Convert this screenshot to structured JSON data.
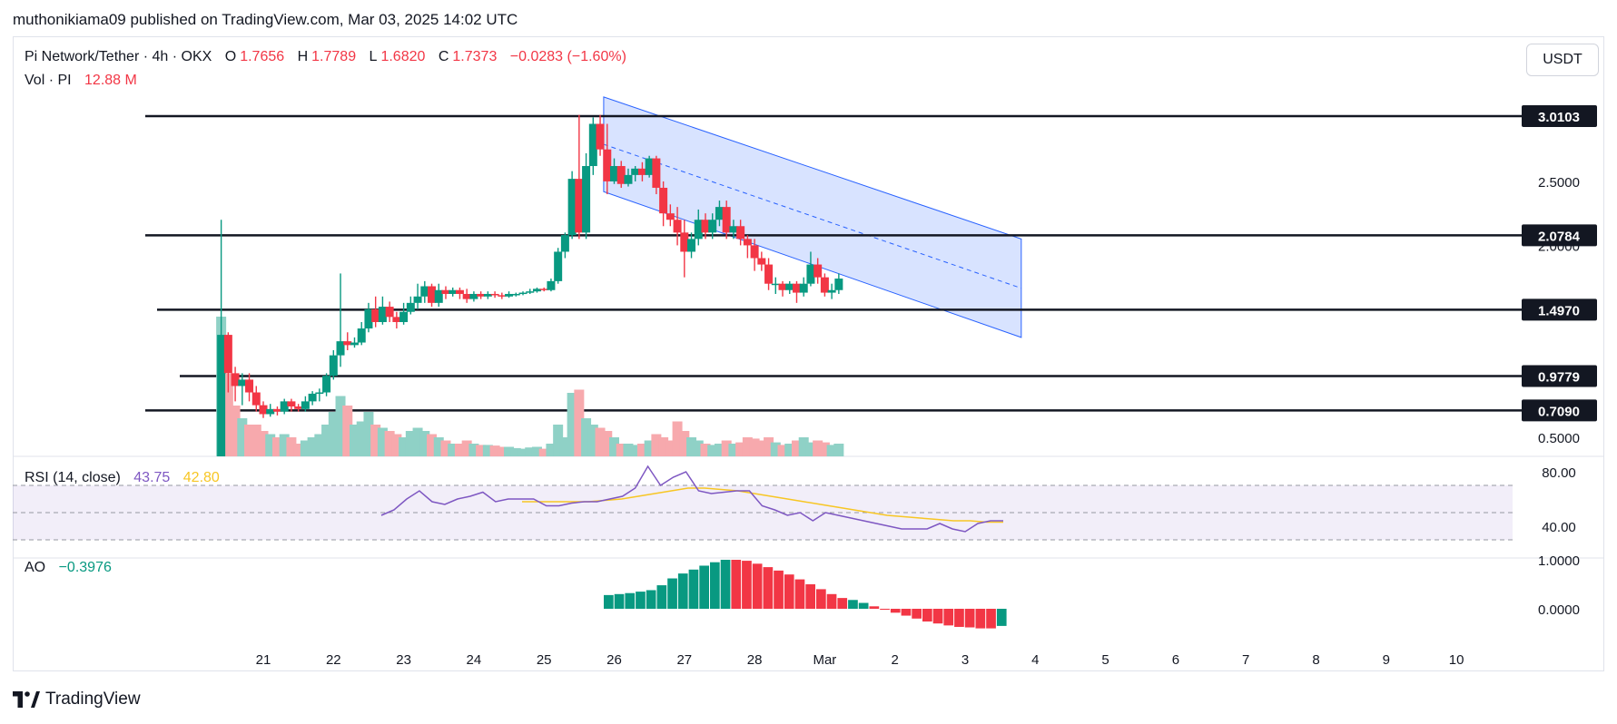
{
  "header": {
    "published": "muthonikiama09 published on TradingView.com, Mar 03, 2025 14:02 UTC"
  },
  "legend": {
    "symbol": "Pi Network/Tether · 4h · OKX",
    "o_label": "O",
    "o_value": "1.7656",
    "h_label": "H",
    "h_value": "1.7789",
    "l_label": "L",
    "l_value": "1.6820",
    "c_label": "C",
    "c_value": "1.7373",
    "change": "−0.0283 (−1.60%)",
    "vol_label": "Vol · PI",
    "vol_value": "12.88 M"
  },
  "currency_button": "USDT",
  "rsi_legend": {
    "label": "RSI (14, close)",
    "rsi": "43.75",
    "ma": "42.80"
  },
  "ao_legend": {
    "label": "AO",
    "value": "−0.3976"
  },
  "brand": {
    "name": "TradingView",
    "icon": "tradingview-logo-icon"
  },
  "colors": {
    "up": "#089981",
    "down": "#f23645",
    "up_vol": "#8fd1c6",
    "down_vol": "#f7a9ad",
    "channel": "#2962ff",
    "rsi": "#7e57c2",
    "rsi_ma": "#f7c624",
    "text": "#131722",
    "axis": "#d1d4dc"
  },
  "chart_data": {
    "type": "candlestick",
    "title": "Pi Network/Tether · 4h · OKX",
    "x_ticks": [
      "21",
      "22",
      "23",
      "24",
      "25",
      "26",
      "27",
      "28",
      "Mar",
      "2",
      "3",
      "4",
      "5",
      "6",
      "7",
      "8",
      "9",
      "10"
    ],
    "price_axis_labels": [
      "2.5000",
      "2.0000",
      "0.5000"
    ],
    "price_axis_ticks": [
      2.5,
      2.0,
      0.5
    ],
    "levels": [
      {
        "label": "3.0103",
        "value": 3.0103
      },
      {
        "label": "2.0784",
        "value": 2.0784
      },
      {
        "label": "1.4970",
        "value": 1.497
      },
      {
        "label": "0.9779",
        "value": 0.9779
      },
      {
        "label": "0.7090",
        "value": 0.709
      }
    ],
    "channel": {
      "upper_start": 3.16,
      "upper_end": 2.05,
      "lower_start": 2.42,
      "lower_end": 1.28,
      "start_day": 25.85,
      "end_day": 31.8
    },
    "candles": [
      [
        20.4,
        0.35,
        1.3,
        0.35,
        2.2,
        2.2
      ],
      [
        20.5,
        1.3,
        1.0,
        0.85,
        1.32,
        1.3
      ],
      [
        20.6,
        1.0,
        0.9,
        0.78,
        1.05,
        0.8
      ],
      [
        20.7,
        0.9,
        0.95,
        0.75,
        1.0,
        0.6
      ],
      [
        20.8,
        0.95,
        0.85,
        0.78,
        1.0,
        0.5
      ],
      [
        20.9,
        0.85,
        0.75,
        0.7,
        0.9,
        0.5
      ],
      [
        21.0,
        0.75,
        0.68,
        0.65,
        0.78,
        0.4
      ],
      [
        21.1,
        0.68,
        0.72,
        0.66,
        0.76,
        0.35
      ],
      [
        21.2,
        0.72,
        0.7,
        0.67,
        0.74,
        0.3
      ],
      [
        21.3,
        0.7,
        0.78,
        0.68,
        0.8,
        0.35
      ],
      [
        21.4,
        0.78,
        0.74,
        0.7,
        0.8,
        0.3
      ],
      [
        21.5,
        0.74,
        0.72,
        0.7,
        0.76,
        0.2
      ],
      [
        21.6,
        0.72,
        0.78,
        0.7,
        0.82,
        0.25
      ],
      [
        21.7,
        0.78,
        0.84,
        0.75,
        0.86,
        0.3
      ],
      [
        21.8,
        0.84,
        0.85,
        0.78,
        0.88,
        0.35
      ],
      [
        21.9,
        0.85,
        0.98,
        0.82,
        1.0,
        0.5
      ],
      [
        22.0,
        0.98,
        1.14,
        0.95,
        1.18,
        0.7
      ],
      [
        22.1,
        1.14,
        1.25,
        1.05,
        1.78,
        0.95
      ],
      [
        22.2,
        1.25,
        1.22,
        1.18,
        1.32,
        0.8
      ],
      [
        22.3,
        1.22,
        1.24,
        1.2,
        1.28,
        0.5
      ],
      [
        22.4,
        1.24,
        1.35,
        1.22,
        1.4,
        0.55
      ],
      [
        22.5,
        1.35,
        1.5,
        1.32,
        1.55,
        0.7
      ],
      [
        22.6,
        1.5,
        1.4,
        1.36,
        1.6,
        0.5
      ],
      [
        22.7,
        1.4,
        1.52,
        1.38,
        1.6,
        0.45
      ],
      [
        22.8,
        1.52,
        1.44,
        1.4,
        1.56,
        0.4
      ],
      [
        22.9,
        1.44,
        1.4,
        1.35,
        1.48,
        0.35
      ],
      [
        23.0,
        1.4,
        1.48,
        1.38,
        1.55,
        0.3
      ],
      [
        23.1,
        1.48,
        1.55,
        1.46,
        1.6,
        0.4
      ],
      [
        23.2,
        1.55,
        1.6,
        1.5,
        1.7,
        0.45
      ],
      [
        23.3,
        1.6,
        1.68,
        1.55,
        1.72,
        0.4
      ],
      [
        23.4,
        1.68,
        1.55,
        1.52,
        1.7,
        0.35
      ],
      [
        23.5,
        1.55,
        1.65,
        1.52,
        1.7,
        0.3
      ],
      [
        23.6,
        1.65,
        1.62,
        1.58,
        1.68,
        0.25
      ],
      [
        23.7,
        1.62,
        1.65,
        1.6,
        1.67,
        0.2
      ],
      [
        23.8,
        1.65,
        1.62,
        1.58,
        1.67,
        0.2
      ],
      [
        23.9,
        1.62,
        1.58,
        1.55,
        1.66,
        0.25
      ],
      [
        24.0,
        1.58,
        1.62,
        1.56,
        1.64,
        0.2
      ],
      [
        24.1,
        1.62,
        1.6,
        1.58,
        1.64,
        0.18
      ],
      [
        24.2,
        1.6,
        1.62,
        1.58,
        1.64,
        0.18
      ],
      [
        24.3,
        1.62,
        1.61,
        1.59,
        1.64,
        0.17
      ],
      [
        24.4,
        1.61,
        1.6,
        1.58,
        1.63,
        0.15
      ],
      [
        24.5,
        1.6,
        1.62,
        1.59,
        1.64,
        0.15
      ],
      [
        24.6,
        1.62,
        1.62,
        1.6,
        1.63,
        0.13
      ],
      [
        24.7,
        1.62,
        1.63,
        1.61,
        1.64,
        0.12
      ],
      [
        24.8,
        1.63,
        1.64,
        1.62,
        1.66,
        0.14
      ],
      [
        24.9,
        1.64,
        1.66,
        1.63,
        1.67,
        0.15
      ],
      [
        25.0,
        1.66,
        1.65,
        1.64,
        1.67,
        0.12
      ],
      [
        25.1,
        1.65,
        1.72,
        1.64,
        1.74,
        0.2
      ],
      [
        25.2,
        1.72,
        1.95,
        1.7,
        1.98,
        0.5
      ],
      [
        25.3,
        1.95,
        2.08,
        1.9,
        2.1,
        0.3
      ],
      [
        25.4,
        2.08,
        2.52,
        2.05,
        2.58,
        1.0
      ],
      [
        25.5,
        2.52,
        2.1,
        2.05,
        3.02,
        1.05
      ],
      [
        25.6,
        2.1,
        2.62,
        2.05,
        2.72,
        0.6
      ],
      [
        25.7,
        2.62,
        2.95,
        2.55,
        3.0,
        0.5
      ],
      [
        25.8,
        2.95,
        2.75,
        2.7,
        3.02,
        0.45
      ],
      [
        25.9,
        2.75,
        2.5,
        2.4,
        2.95,
        0.4
      ],
      [
        26.0,
        2.5,
        2.62,
        2.48,
        2.68,
        0.3
      ],
      [
        26.1,
        2.62,
        2.48,
        2.45,
        2.66,
        0.2
      ],
      [
        26.2,
        2.48,
        2.55,
        2.46,
        2.6,
        0.2
      ],
      [
        26.3,
        2.55,
        2.6,
        2.5,
        2.62,
        0.18
      ],
      [
        26.4,
        2.6,
        2.55,
        2.5,
        2.65,
        0.2
      ],
      [
        26.5,
        2.55,
        2.68,
        2.53,
        2.7,
        0.25
      ],
      [
        26.6,
        2.68,
        2.45,
        2.4,
        2.7,
        0.35
      ],
      [
        26.7,
        2.45,
        2.25,
        2.15,
        2.5,
        0.3
      ],
      [
        26.8,
        2.25,
        2.2,
        2.15,
        2.32,
        0.25
      ],
      [
        26.9,
        2.2,
        2.1,
        2.0,
        2.3,
        0.55
      ],
      [
        27.0,
        2.1,
        1.95,
        1.75,
        2.2,
        0.4
      ],
      [
        27.1,
        1.95,
        2.05,
        1.9,
        2.1,
        0.3
      ],
      [
        27.2,
        2.05,
        2.2,
        2.0,
        2.28,
        0.25
      ],
      [
        27.3,
        2.2,
        2.1,
        2.05,
        2.25,
        0.2
      ],
      [
        27.4,
        2.1,
        2.2,
        2.05,
        2.25,
        0.18
      ],
      [
        27.5,
        2.2,
        2.3,
        2.15,
        2.35,
        0.2
      ],
      [
        27.6,
        2.3,
        2.1,
        2.05,
        2.35,
        0.25
      ],
      [
        27.7,
        2.1,
        2.15,
        2.05,
        2.2,
        0.2
      ],
      [
        27.8,
        2.15,
        2.05,
        2.0,
        2.2,
        0.22
      ],
      [
        27.9,
        2.05,
        2.0,
        1.9,
        2.08,
        0.3
      ],
      [
        28.0,
        2.0,
        1.9,
        1.8,
        2.05,
        0.28
      ],
      [
        28.1,
        1.9,
        1.85,
        1.8,
        1.95,
        0.25
      ],
      [
        28.2,
        1.85,
        1.7,
        1.65,
        1.9,
        0.3
      ],
      [
        28.3,
        1.7,
        1.7,
        1.62,
        1.75,
        0.22
      ],
      [
        28.4,
        1.7,
        1.65,
        1.6,
        1.72,
        0.18
      ],
      [
        28.5,
        1.65,
        1.7,
        1.62,
        1.72,
        0.2
      ],
      [
        28.6,
        1.7,
        1.63,
        1.55,
        1.72,
        0.25
      ],
      [
        28.7,
        1.63,
        1.7,
        1.6,
        1.75,
        0.3
      ],
      [
        28.8,
        1.7,
        1.85,
        1.68,
        1.95,
        0.22
      ],
      [
        28.9,
        1.85,
        1.75,
        1.7,
        1.9,
        0.25
      ],
      [
        29.0,
        1.75,
        1.63,
        1.6,
        1.78,
        0.22
      ],
      [
        29.1,
        1.63,
        1.65,
        1.58,
        1.7,
        0.18
      ],
      [
        29.2,
        1.65,
        1.74,
        1.62,
        1.78,
        0.2
      ]
    ],
    "rsi": [
      48,
      52,
      60,
      66,
      58,
      56,
      60,
      62,
      65,
      58,
      60,
      60,
      60,
      55,
      55,
      57,
      58,
      58,
      60,
      62,
      68,
      84,
      70,
      76,
      80,
      66,
      64,
      65,
      66,
      66,
      55,
      52,
      48,
      50,
      44,
      50,
      48,
      46,
      44,
      42,
      40,
      38,
      38,
      38,
      42,
      38,
      36,
      42,
      44,
      44
    ],
    "rsi_ma": [
      58,
      58,
      58,
      58,
      58,
      59,
      60,
      62,
      64,
      66,
      68,
      68,
      67,
      66,
      64,
      62,
      60,
      58,
      56,
      54,
      52,
      50,
      48,
      47,
      46,
      45,
      44,
      44,
      43,
      43
    ],
    "rsi_axis": [
      "80.00",
      "40.00"
    ],
    "ao": [
      0.28,
      0.3,
      0.32,
      0.35,
      0.38,
      0.48,
      0.62,
      0.72,
      0.8,
      0.88,
      0.95,
      1.0,
      1.0,
      0.98,
      0.92,
      0.85,
      0.78,
      0.7,
      0.6,
      0.5,
      0.4,
      0.3,
      0.22,
      0.18,
      0.12,
      0.05,
      -0.02,
      -0.08,
      -0.14,
      -0.2,
      -0.26,
      -0.3,
      -0.34,
      -0.37,
      -0.38,
      -0.4,
      -0.4,
      -0.35
    ],
    "ao_colors": [
      "up",
      "up",
      "up",
      "up",
      "up",
      "up",
      "up",
      "up",
      "up",
      "up",
      "up",
      "up",
      "down",
      "down",
      "down",
      "down",
      "down",
      "down",
      "down",
      "down",
      "down",
      "down",
      "down",
      "up",
      "up",
      "down",
      "down",
      "down",
      "down",
      "down",
      "down",
      "down",
      "down",
      "down",
      "down",
      "down",
      "down",
      "up"
    ],
    "ao_axis": [
      "1.0000",
      "0.0000"
    ]
  }
}
